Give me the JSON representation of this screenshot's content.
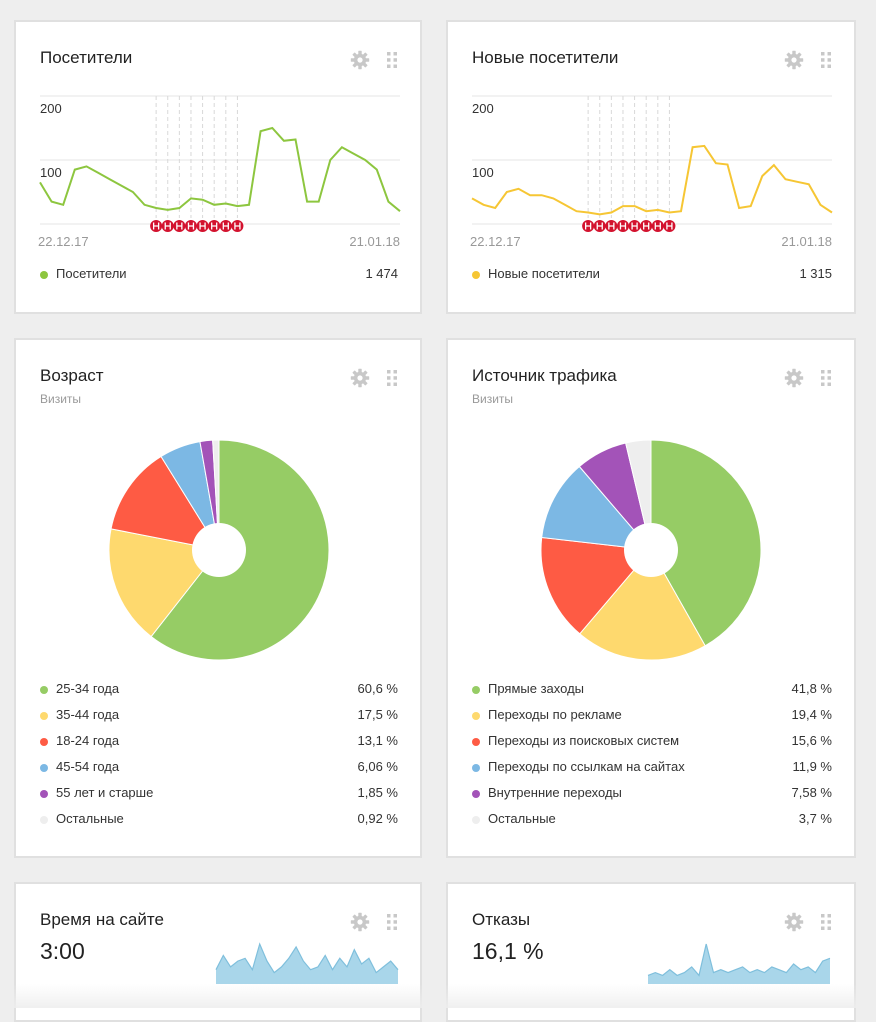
{
  "widgets": {
    "visitors": {
      "title": "Посетители",
      "y_ticks": [
        "200",
        "100"
      ],
      "x_start": "22.12.17",
      "x_end": "21.01.18",
      "legend": [
        {
          "label": "Посетители",
          "value": "1 474",
          "color": "#8dc63f"
        }
      ],
      "line_color": "#8dc63f"
    },
    "new_visitors": {
      "title": "Новые посетители",
      "y_ticks": [
        "200",
        "100"
      ],
      "x_start": "22.12.17",
      "x_end": "21.01.18",
      "legend": [
        {
          "label": "Новые посетители",
          "value": "1 315",
          "color": "#f6c634"
        }
      ],
      "line_color": "#f6c634"
    },
    "age": {
      "title": "Возраст",
      "subtitle": "Визиты",
      "legend": [
        {
          "label": "25-34 года",
          "value": "60,6 %",
          "color": "#96cc65"
        },
        {
          "label": "35-44 года",
          "value": "17,5 %",
          "color": "#fed96e"
        },
        {
          "label": "18-24 года",
          "value": "13,1 %",
          "color": "#fe5b44"
        },
        {
          "label": "45-54 года",
          "value": "6,06 %",
          "color": "#7cb8e4"
        },
        {
          "label": "55 лет и старше",
          "value": "1,85 %",
          "color": "#a353b8"
        },
        {
          "label": "Остальные",
          "value": "0,92 %",
          "color": "#eeeeee"
        }
      ]
    },
    "traffic": {
      "title": "Источник трафика",
      "subtitle": "Визиты",
      "legend": [
        {
          "label": "Прямые заходы",
          "value": "41,8 %",
          "color": "#96cc65"
        },
        {
          "label": "Переходы по рекламе",
          "value": "19,4 %",
          "color": "#fed96e"
        },
        {
          "label": "Переходы из поисковых систем",
          "value": "15,6 %",
          "color": "#fe5b44"
        },
        {
          "label": "Переходы по ссылкам на сайтах",
          "value": "11,9 %",
          "color": "#7cb8e4"
        },
        {
          "label": "Внутренние переходы",
          "value": "7,58 %",
          "color": "#a353b8"
        },
        {
          "label": "Остальные",
          "value": "3,7 %",
          "color": "#eeeeee"
        }
      ]
    },
    "time_on_site": {
      "title": "Время на сайте",
      "value": "3:00",
      "spark_color": "#a9d6ea"
    },
    "bounces": {
      "title": "Отказы",
      "value": "16,1 %",
      "spark_color": "#a9d6ea"
    }
  },
  "chart_data": [
    {
      "type": "line",
      "series": [
        {
          "name": "Посетители",
          "values": [
            65,
            35,
            30,
            85,
            90,
            80,
            70,
            60,
            50,
            30,
            25,
            22,
            25,
            40,
            38,
            30,
            32,
            28,
            30,
            145,
            150,
            130,
            132,
            35,
            35,
            100,
            120,
            110,
            100,
            85,
            35,
            20
          ]
        }
      ],
      "ylim": [
        0,
        200
      ]
    },
    {
      "type": "line",
      "series": [
        {
          "name": "Новые посетители",
          "values": [
            40,
            30,
            25,
            50,
            55,
            45,
            45,
            40,
            30,
            20,
            18,
            15,
            18,
            28,
            28,
            20,
            22,
            18,
            20,
            120,
            122,
            95,
            93,
            25,
            28,
            75,
            92,
            70,
            66,
            62,
            30,
            18
          ]
        }
      ],
      "ylim": [
        0,
        200
      ]
    },
    {
      "type": "pie",
      "categories": [
        "25-34 года",
        "35-44 года",
        "18-24 года",
        "45-54 года",
        "55 лет и старше",
        "Остальные"
      ],
      "values": [
        60.6,
        17.5,
        13.1,
        6.06,
        1.85,
        0.92
      ]
    },
    {
      "type": "pie",
      "categories": [
        "Прямые заходы",
        "Переходы по рекламе",
        "Переходы из поисковых систем",
        "Переходы по ссылкам на сайтах",
        "Внутренние переходы",
        "Остальные"
      ],
      "values": [
        41.8,
        19.4,
        15.6,
        11.9,
        7.58,
        3.7
      ]
    },
    {
      "type": "area",
      "values": [
        5,
        10,
        6,
        8,
        9,
        5,
        14,
        8,
        4,
        6,
        9,
        13,
        8,
        5,
        6,
        10,
        5,
        9,
        6,
        12,
        7,
        9,
        4,
        6,
        8,
        5
      ]
    },
    {
      "type": "area",
      "values": [
        3,
        4,
        3,
        5,
        3,
        4,
        6,
        3,
        14,
        4,
        5,
        4,
        5,
        6,
        4,
        5,
        4,
        6,
        5,
        4,
        7,
        5,
        6,
        4,
        8,
        9
      ]
    }
  ]
}
